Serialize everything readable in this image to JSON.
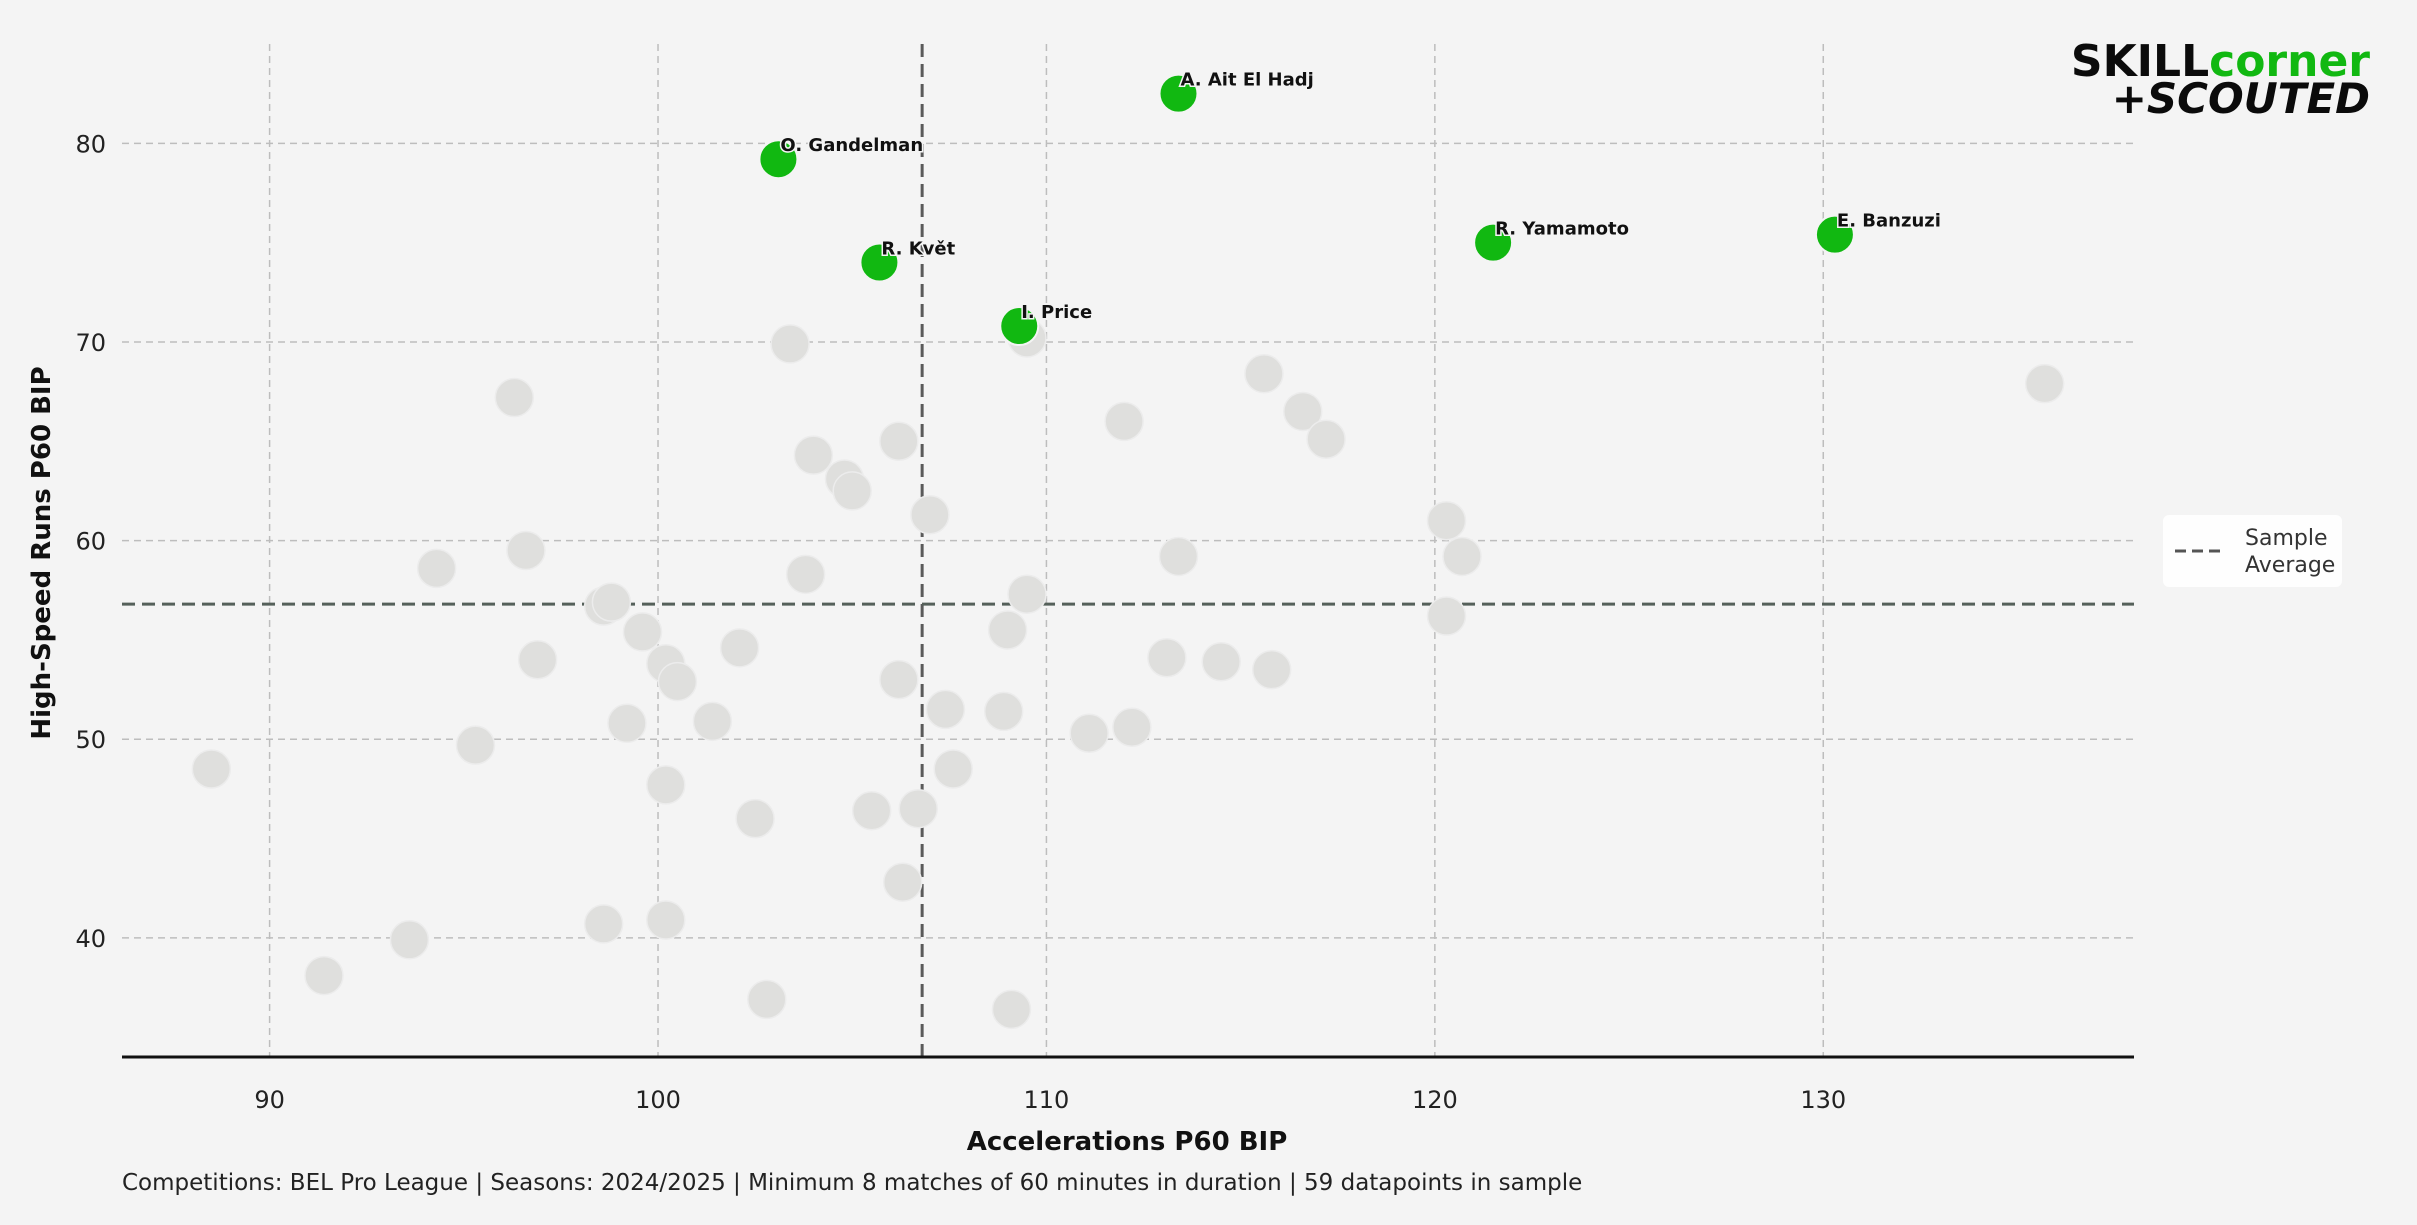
{
  "chart_data": {
    "type": "scatter",
    "xlabel": "Accelerations P60 BIP",
    "ylabel": "High-Speed Runs P60 BIP",
    "xlim": [
      86.2,
      138.0
    ],
    "ylim": [
      34.0,
      85.0
    ],
    "x_ticks": [
      90,
      100,
      110,
      120,
      130
    ],
    "y_ticks": [
      40,
      50,
      60,
      70,
      80
    ],
    "grid": true,
    "sample_average": {
      "x": 106.8,
      "y": 56.8
    },
    "legend": {
      "label": "Sample Average",
      "lines": [
        "Sample",
        "Average"
      ],
      "position": "right"
    },
    "highlighted_color": "#11b811",
    "background_color": "#dfdfdd",
    "highlighted": [
      {
        "name": "A. Ait El Hadj",
        "x": 113.4,
        "y": 82.5
      },
      {
        "name": "O. Gandelman",
        "x": 103.1,
        "y": 79.2
      },
      {
        "name": "R. Květ",
        "x": 105.7,
        "y": 74.0
      },
      {
        "name": "I. Price",
        "x": 109.3,
        "y": 70.8
      },
      {
        "name": "R. Yamamoto",
        "x": 121.5,
        "y": 75.0
      },
      {
        "name": "E. Banzuzi",
        "x": 130.3,
        "y": 75.4
      }
    ],
    "background": [
      {
        "x": 88.5,
        "y": 48.5
      },
      {
        "x": 91.4,
        "y": 38.1
      },
      {
        "x": 93.6,
        "y": 39.9
      },
      {
        "x": 94.3,
        "y": 58.6
      },
      {
        "x": 95.3,
        "y": 49.7
      },
      {
        "x": 96.3,
        "y": 67.2
      },
      {
        "x": 96.6,
        "y": 59.5
      },
      {
        "x": 96.9,
        "y": 54.0
      },
      {
        "x": 98.6,
        "y": 40.7
      },
      {
        "x": 98.6,
        "y": 56.7
      },
      {
        "x": 98.8,
        "y": 56.9
      },
      {
        "x": 99.2,
        "y": 50.8
      },
      {
        "x": 99.6,
        "y": 55.4
      },
      {
        "x": 100.2,
        "y": 53.8
      },
      {
        "x": 100.2,
        "y": 47.7
      },
      {
        "x": 100.2,
        "y": 40.9
      },
      {
        "x": 100.5,
        "y": 52.9
      },
      {
        "x": 101.4,
        "y": 50.9
      },
      {
        "x": 102.1,
        "y": 54.6
      },
      {
        "x": 102.5,
        "y": 46.0
      },
      {
        "x": 102.8,
        "y": 36.9
      },
      {
        "x": 103.4,
        "y": 69.9
      },
      {
        "x": 103.8,
        "y": 58.3
      },
      {
        "x": 104.0,
        "y": 64.3
      },
      {
        "x": 104.8,
        "y": 63.1
      },
      {
        "x": 105.0,
        "y": 62.5
      },
      {
        "x": 105.5,
        "y": 46.4
      },
      {
        "x": 106.2,
        "y": 65.0
      },
      {
        "x": 106.2,
        "y": 53.0
      },
      {
        "x": 106.3,
        "y": 42.8
      },
      {
        "x": 106.7,
        "y": 46.5
      },
      {
        "x": 107.0,
        "y": 61.3
      },
      {
        "x": 107.4,
        "y": 51.5
      },
      {
        "x": 107.6,
        "y": 48.5
      },
      {
        "x": 108.9,
        "y": 51.4
      },
      {
        "x": 109.0,
        "y": 55.5
      },
      {
        "x": 109.1,
        "y": 36.4
      },
      {
        "x": 109.5,
        "y": 57.3
      },
      {
        "x": 109.5,
        "y": 70.2
      },
      {
        "x": 111.1,
        "y": 50.3
      },
      {
        "x": 112.0,
        "y": 66.0
      },
      {
        "x": 112.2,
        "y": 50.6
      },
      {
        "x": 113.1,
        "y": 54.1
      },
      {
        "x": 113.4,
        "y": 59.2
      },
      {
        "x": 114.5,
        "y": 53.9
      },
      {
        "x": 115.6,
        "y": 68.4
      },
      {
        "x": 115.8,
        "y": 53.5
      },
      {
        "x": 116.6,
        "y": 66.5
      },
      {
        "x": 117.2,
        "y": 65.1
      },
      {
        "x": 120.3,
        "y": 56.2
      },
      {
        "x": 120.3,
        "y": 61.0
      },
      {
        "x": 120.7,
        "y": 59.2
      },
      {
        "x": 135.7,
        "y": 67.9
      }
    ]
  },
  "caption": "Competitions: BEL Pro League | Seasons: 2024/2025 | Minimum 8 matches of 60 minutes in duration | 59 datapoints in sample",
  "logo": {
    "skill": "SKILL",
    "corner": "corner",
    "scouted": "+SCOUTED",
    "dark_color": "#0b0b0b",
    "green_color": "#11b811"
  }
}
